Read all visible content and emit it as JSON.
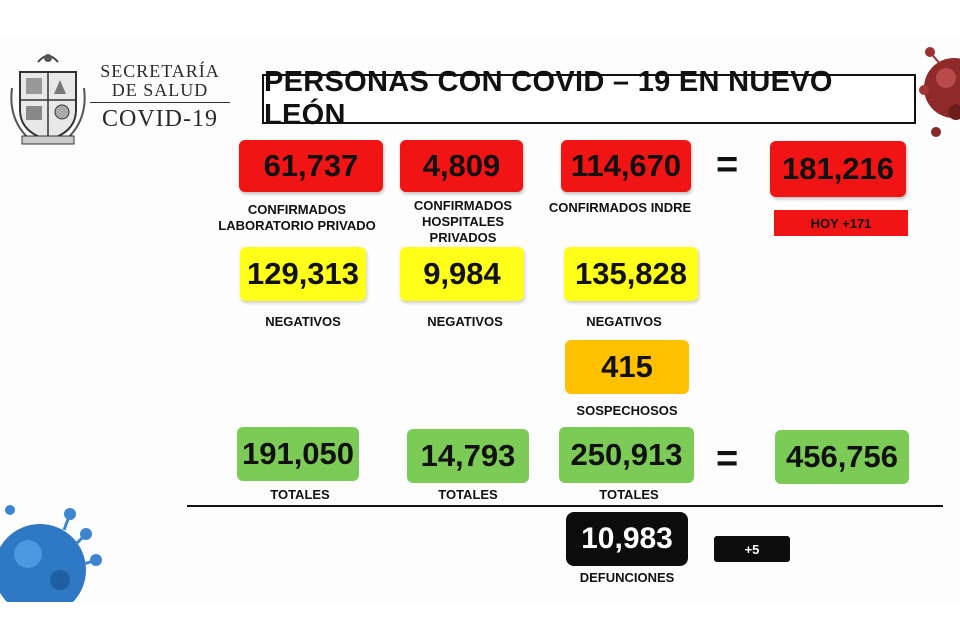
{
  "org": {
    "line1": "SECRETARÍA",
    "line2": "DE SALUD",
    "line3": "COVID-19"
  },
  "title": "PERSONAS CON COVID – 19 EN NUEVO LEÓN",
  "confirmed": {
    "private_lab": {
      "value": "61,737",
      "label_l1": "CONFIRMADOS",
      "label_l2": "LABORATORIO PRIVADO"
    },
    "private_hosp": {
      "value": "4,809",
      "label_l1": "CONFIRMADOS",
      "label_l2": "HOSPITALES PRIVADOS"
    },
    "indre": {
      "value": "114,670",
      "label_l1": "CONFIRMADOS INDRE"
    },
    "equals": "=",
    "total": "181,216",
    "today": "HOY +171"
  },
  "negatives": {
    "c1": {
      "value": "129,313",
      "label": "NEGATIVOS"
    },
    "c2": {
      "value": "9,984",
      "label": "NEGATIVOS"
    },
    "c3": {
      "value": "135,828",
      "label": "NEGATIVOS"
    }
  },
  "suspects": {
    "value": "415",
    "label": "SOSPECHOSOS"
  },
  "totals": {
    "c1": {
      "value": "191,050",
      "label": "TOTALES"
    },
    "c2": {
      "value": "14,793",
      "label": "TOTALES"
    },
    "c3": {
      "value": "250,913",
      "label": "TOTALES"
    },
    "equals": "=",
    "grand": "456,756"
  },
  "deaths": {
    "value": "10,983",
    "label": "DEFUNCIONES",
    "today": "+5"
  },
  "colors": {
    "red": "#f01414",
    "yellow": "#ffff1a",
    "orange": "#ffc000",
    "green": "#7ccb57",
    "black": "#0c0c0c"
  },
  "icons": {
    "logo": "state-coat-of-arms-icon",
    "virus": "coronavirus-icon"
  }
}
